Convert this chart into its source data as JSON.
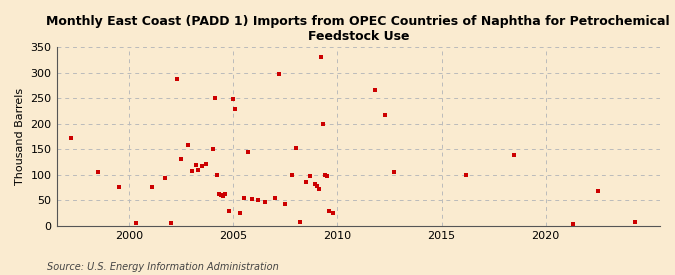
{
  "title": "Monthly East Coast (PADD 1) Imports from OPEC Countries of Naphtha for Petrochemical\nFeedstock Use",
  "ylabel": "Thousand Barrels",
  "source": "Source: U.S. Energy Information Administration",
  "bg_color": "#faebd0",
  "plot_bg_color": "#faebd0",
  "marker_color": "#cc0000",
  "grid_color": "#bbbbbb",
  "xlim": [
    1996.5,
    2025.5
  ],
  "ylim": [
    0,
    350
  ],
  "yticks": [
    0,
    50,
    100,
    150,
    200,
    250,
    300,
    350
  ],
  "xticks": [
    2000,
    2005,
    2010,
    2015,
    2020
  ],
  "points": [
    [
      1997.2,
      172
    ],
    [
      1998.5,
      105
    ],
    [
      1999.5,
      76
    ],
    [
      2000.3,
      5
    ],
    [
      2001.1,
      76
    ],
    [
      2001.7,
      93
    ],
    [
      2002.0,
      5
    ],
    [
      2002.3,
      287
    ],
    [
      2002.5,
      130
    ],
    [
      2002.8,
      158
    ],
    [
      2003.0,
      107
    ],
    [
      2003.2,
      120
    ],
    [
      2003.3,
      110
    ],
    [
      2003.5,
      118
    ],
    [
      2003.7,
      122
    ],
    [
      2004.0,
      150
    ],
    [
      2004.1,
      250
    ],
    [
      2004.2,
      100
    ],
    [
      2004.3,
      62
    ],
    [
      2004.4,
      60
    ],
    [
      2004.5,
      58
    ],
    [
      2004.6,
      62
    ],
    [
      2004.8,
      30
    ],
    [
      2005.0,
      248
    ],
    [
      2005.1,
      228
    ],
    [
      2005.3,
      25
    ],
    [
      2005.5,
      55
    ],
    [
      2005.7,
      145
    ],
    [
      2005.9,
      52
    ],
    [
      2006.2,
      50
    ],
    [
      2006.5,
      47
    ],
    [
      2007.0,
      55
    ],
    [
      2007.2,
      297
    ],
    [
      2007.5,
      42
    ],
    [
      2007.8,
      100
    ],
    [
      2008.0,
      153
    ],
    [
      2008.2,
      8
    ],
    [
      2008.5,
      85
    ],
    [
      2008.7,
      97
    ],
    [
      2008.9,
      82
    ],
    [
      2009.0,
      78
    ],
    [
      2009.1,
      72
    ],
    [
      2009.2,
      330
    ],
    [
      2009.3,
      200
    ],
    [
      2009.4,
      100
    ],
    [
      2009.5,
      97
    ],
    [
      2009.6,
      30
    ],
    [
      2009.8,
      25
    ],
    [
      2011.8,
      265
    ],
    [
      2012.3,
      217
    ],
    [
      2012.7,
      105
    ],
    [
      2016.2,
      100
    ],
    [
      2018.5,
      138
    ],
    [
      2021.3,
      3
    ],
    [
      2022.5,
      68
    ],
    [
      2024.3,
      8
    ]
  ]
}
